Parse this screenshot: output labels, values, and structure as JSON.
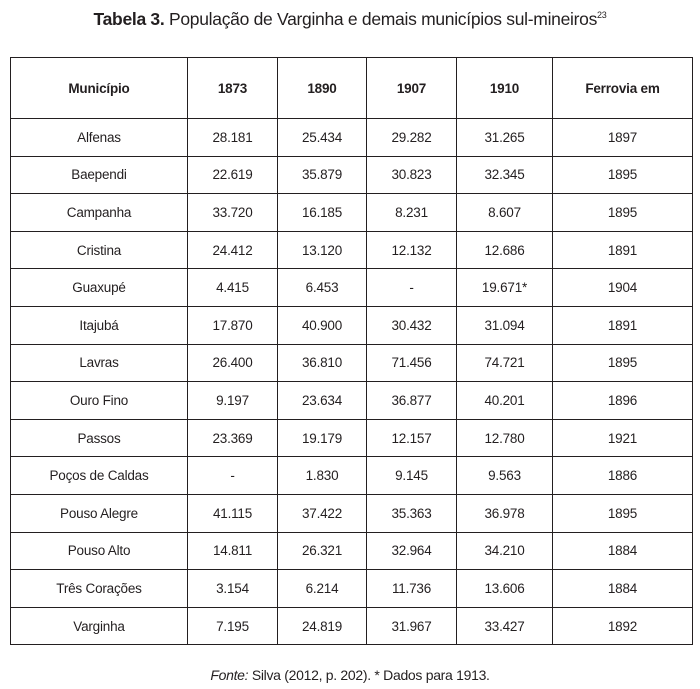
{
  "title": {
    "label": "Tabela 3.",
    "text": " População de Varginha e demais municípios sul-mineiros",
    "footnote_ref": "23"
  },
  "table": {
    "headers": [
      "Município",
      "1873",
      "1890",
      "1907",
      "1910",
      "Ferrovia em"
    ],
    "rows": [
      [
        "Alfenas",
        "28.181",
        "25.434",
        "29.282",
        "31.265",
        "1897"
      ],
      [
        "Baependi",
        "22.619",
        "35.879",
        "30.823",
        "32.345",
        "1895"
      ],
      [
        "Campanha",
        "33.720",
        "16.185",
        "8.231",
        "8.607",
        "1895"
      ],
      [
        "Cristina",
        "24.412",
        "13.120",
        "12.132",
        "12.686",
        "1891"
      ],
      [
        "Guaxupé",
        "4.415",
        "6.453",
        "-",
        "19.671*",
        "1904"
      ],
      [
        "Itajubá",
        "17.870",
        "40.900",
        "30.432",
        "31.094",
        "1891"
      ],
      [
        "Lavras",
        "26.400",
        "36.810",
        "71.456",
        "74.721",
        "1895"
      ],
      [
        "Ouro Fino",
        "9.197",
        "23.634",
        "36.877",
        "40.201",
        "1896"
      ],
      [
        "Passos",
        "23.369",
        "19.179",
        "12.157",
        "12.780",
        "1921"
      ],
      [
        "Poços de Caldas",
        "-",
        "1.830",
        "9.145",
        "9.563",
        "1886"
      ],
      [
        "Pouso Alegre",
        "41.115",
        "37.422",
        "35.363",
        "36.978",
        "1895"
      ],
      [
        "Pouso Alto",
        "14.811",
        "26.321",
        "32.964",
        "34.210",
        "1884"
      ],
      [
        "Três Corações",
        "3.154",
        "6.214",
        "11.736",
        "13.606",
        "1884"
      ],
      [
        "Varginha",
        "7.195",
        "24.819",
        "31.967",
        "33.427",
        "1892"
      ]
    ]
  },
  "source": {
    "label": "Fonte:",
    "text": " Silva (2012, p. 202). * Dados para 1913."
  }
}
